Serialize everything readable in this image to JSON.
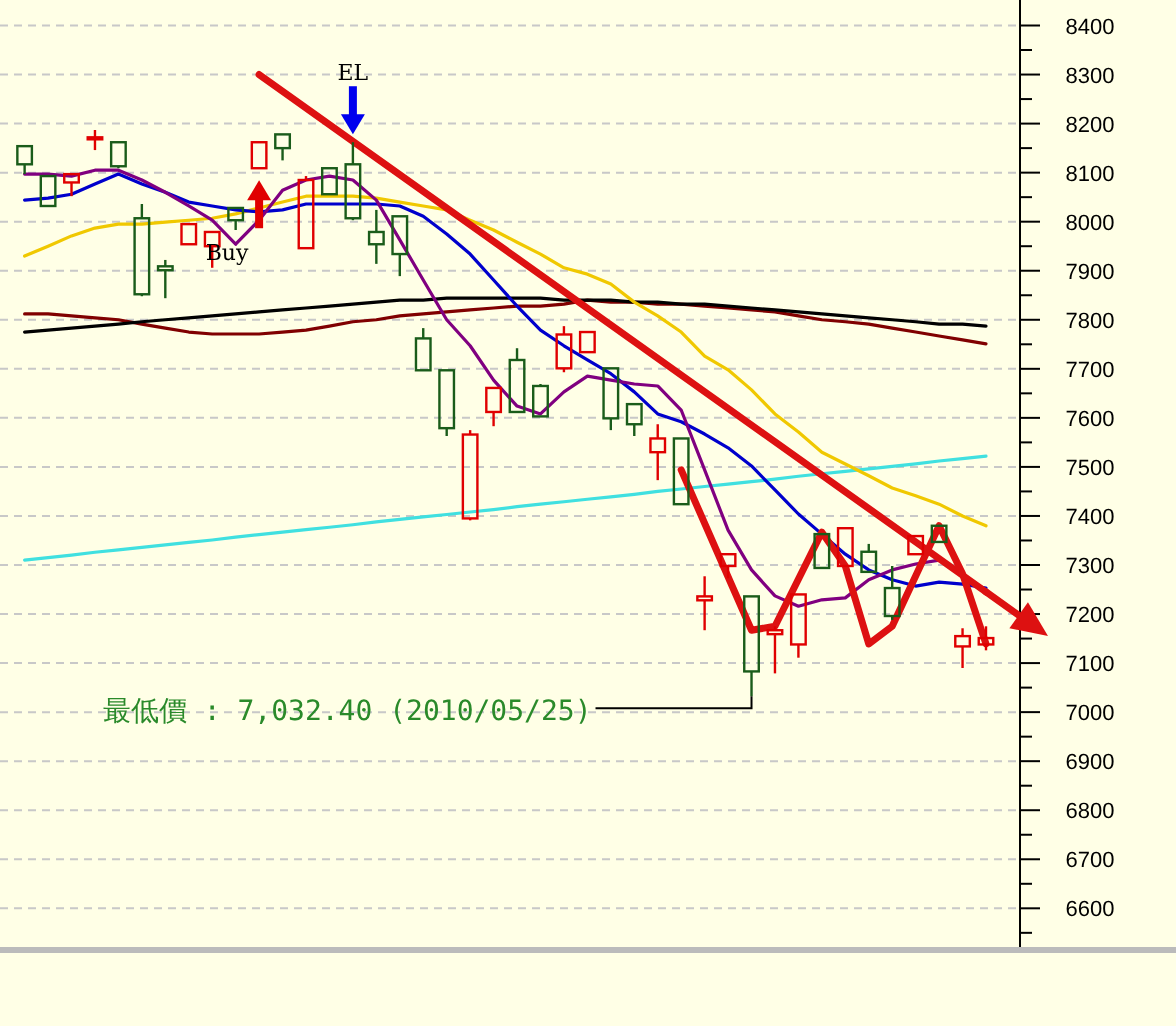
{
  "chart_data": {
    "type": "candlestick",
    "categories": [
      null,
      null,
      null,
      null,
      null,
      null,
      null,
      null,
      null,
      null,
      null,
      null,
      null,
      null,
      null,
      null,
      null,
      null,
      null,
      null,
      null,
      null,
      null,
      null,
      null,
      null,
      null,
      null,
      null,
      null,
      null,
      null,
      null,
      null,
      null,
      null,
      null,
      null,
      null,
      null,
      null,
      null
    ],
    "ylim": [
      6515,
      8452
    ],
    "yticks": [
      {
        "value": 6550,
        "label": null
      },
      6600,
      {
        "value": 6650,
        "label": null
      },
      6700,
      {
        "value": 6750,
        "label": null
      },
      6800,
      {
        "value": 6850,
        "label": null
      },
      6900,
      {
        "value": 6950,
        "label": null
      },
      7000,
      {
        "value": 7050,
        "label": null
      },
      7100,
      {
        "value": 7150,
        "label": null
      },
      7200,
      {
        "value": 7250,
        "label": null
      },
      7300,
      {
        "value": 7350,
        "label": null
      },
      7400,
      {
        "value": 7450,
        "label": null
      },
      7500,
      {
        "value": 7550,
        "label": null
      },
      7600,
      {
        "value": 7650,
        "label": null
      },
      7700,
      {
        "value": 7750,
        "label": null
      },
      7800,
      {
        "value": 7850,
        "label": null
      },
      7900,
      {
        "value": 7950,
        "label": null
      },
      8000,
      {
        "value": 8050,
        "label": null
      },
      8100,
      {
        "value": 8150,
        "label": null
      },
      8200,
      {
        "value": 8250,
        "label": null
      },
      8300,
      {
        "value": 8350,
        "label": null
      },
      8400
    ],
    "tick_labels": "y",
    "grid": "y",
    "ohlc": [
      [
        8154,
        8154,
        8097,
        8117
      ],
      [
        8093,
        8093,
        8032,
        8032
      ],
      [
        8080,
        8097,
        8052,
        8097
      ],
      [
        8168,
        8187,
        8146,
        8172
      ],
      [
        8162,
        8162,
        8109,
        8113
      ],
      [
        8007,
        8036,
        7848,
        7852
      ],
      [
        7909,
        7922,
        7844,
        7901
      ],
      [
        7954,
        7995,
        7954,
        7995
      ],
      [
        7950,
        7979,
        7906,
        7979
      ],
      [
        8028,
        8028,
        7983,
        8003
      ],
      [
        8109,
        8162,
        8109,
        8162
      ],
      [
        8178,
        8178,
        8125,
        8150
      ],
      [
        7946,
        8093,
        7946,
        8085
      ],
      [
        8109,
        8109,
        8056,
        8056
      ],
      [
        8117,
        8162,
        8003,
        8007
      ],
      [
        7979,
        8024,
        7914,
        7954
      ],
      [
        8011,
        8011,
        7889,
        7934
      ],
      [
        7762,
        7783,
        7697,
        7697
      ],
      [
        7697,
        7697,
        7563,
        7579
      ],
      [
        7395,
        7575,
        7391,
        7566
      ],
      [
        7612,
        7661,
        7583,
        7661
      ],
      [
        7718,
        7742,
        7612,
        7612
      ],
      [
        7665,
        7669,
        7603,
        7603
      ],
      [
        7701,
        7787,
        7693,
        7770
      ],
      [
        7734,
        7775,
        7734,
        7775
      ],
      [
        7701,
        7701,
        7575,
        7599
      ],
      [
        7628,
        7628,
        7563,
        7587
      ],
      [
        7530,
        7587,
        7473,
        7558
      ],
      [
        7558,
        7558,
        7424,
        7424
      ],
      [
        7228,
        7277,
        7167,
        7236
      ],
      [
        7298,
        7322,
        7273,
        7322
      ],
      [
        7236,
        7236,
        7032.4,
        7083
      ],
      [
        7159,
        7175,
        7079,
        7167
      ],
      [
        7138,
        7240,
        7111,
        7240
      ],
      [
        7363,
        7363,
        7294,
        7294
      ],
      [
        7298,
        7375,
        7298,
        7375
      ],
      [
        7327,
        7343,
        7286,
        7286
      ],
      [
        7253,
        7298,
        7188,
        7196
      ],
      [
        7322,
        7359,
        7322,
        7359
      ],
      [
        7380,
        7380,
        7347,
        7347
      ],
      [
        7134,
        7171,
        7090,
        7155
      ],
      [
        7138,
        7175,
        7126,
        7151
      ]
    ],
    "colors": [
      "#1a5c1a",
      "#1a5c1a",
      "#e00000",
      "#e00000",
      "#1a5c1a",
      "#1a5c1a",
      "#1a5c1a",
      "#e00000",
      "#e00000",
      "#1a5c1a",
      "#e00000",
      "#1a5c1a",
      "#e00000",
      "#1a5c1a",
      "#1a5c1a",
      "#1a5c1a",
      "#1a5c1a",
      "#1a5c1a",
      "#1a5c1a",
      "#e00000",
      "#e00000",
      "#1a5c1a",
      "#1a5c1a",
      "#e00000",
      "#e00000",
      "#1a5c1a",
      "#1a5c1a",
      "#e00000",
      "#1a5c1a",
      "#e00000",
      "#e00000",
      "#1a5c1a",
      "#e00000",
      "#e00000",
      "#1a5c1a",
      "#e00000",
      "#1a5c1a",
      "#1a5c1a",
      "#e00000",
      "#1a5c1a",
      "#e00000",
      "#e00000"
    ],
    "series": [
      {
        "type": "line",
        "color": "#40e0e0",
        "values": [
          7310,
          7315,
          7320,
          7326,
          7331,
          7336,
          7341,
          7346,
          7351,
          7357,
          7362,
          7367,
          7372,
          7377,
          7382,
          7388,
          7393,
          7398,
          7403,
          7408,
          7413,
          7419,
          7424,
          7429,
          7434,
          7439,
          7444,
          7450,
          7455,
          7460,
          7465,
          7470,
          7475,
          7481,
          7486,
          7491,
          7496,
          7501,
          7506,
          7512,
          7517,
          7522
        ]
      },
      {
        "type": "line",
        "color": "#800000",
        "values": [
          7812,
          7812,
          7808,
          7804,
          7800,
          7791,
          7783,
          7775,
          7771,
          7771,
          7771,
          7775,
          7779,
          7787,
          7796,
          7800,
          7808,
          7812,
          7816,
          7820,
          7824,
          7828,
          7828,
          7832,
          7840,
          7836,
          7836,
          7832,
          7832,
          7828,
          7824,
          7820,
          7816,
          7808,
          7800,
          7796,
          7791,
          7783,
          7775,
          7767,
          7759,
          7751
        ]
      },
      {
        "type": "line",
        "color": "#000000",
        "values": [
          7775,
          7779,
          7783,
          7787,
          7791,
          7796,
          7800,
          7804,
          7808,
          7812,
          7816,
          7820,
          7824,
          7828,
          7832,
          7836,
          7840,
          7840,
          7844,
          7844,
          7844,
          7844,
          7844,
          7840,
          7840,
          7840,
          7836,
          7836,
          7832,
          7832,
          7828,
          7824,
          7820,
          7816,
          7812,
          7808,
          7804,
          7800,
          7796,
          7791,
          7791,
          7787
        ]
      },
      {
        "type": "line",
        "color": "#f0c800",
        "values": [
          7930,
          7950,
          7971,
          7987,
          7995,
          7995,
          7999,
          8003,
          8007,
          8016,
          8028,
          8040,
          8052,
          8052,
          8052,
          8048,
          8040,
          8032,
          8024,
          8003,
          7983,
          7958,
          7934,
          7906,
          7893,
          7873,
          7836,
          7808,
          7775,
          7726,
          7698,
          7657,
          7608,
          7571,
          7530,
          7506,
          7482,
          7457,
          7441,
          7424,
          7400,
          7380
        ]
      },
      {
        "type": "line",
        "color": "#0000cc",
        "values": [
          8044,
          8048,
          8056,
          8077,
          8097,
          8077,
          8060,
          8040,
          8032,
          8024,
          8020,
          8024,
          8036,
          8036,
          8036,
          8036,
          8032,
          8011,
          7975,
          7934,
          7881,
          7828,
          7779,
          7747,
          7718,
          7690,
          7653,
          7608,
          7592,
          7567,
          7539,
          7502,
          7453,
          7404,
          7363,
          7322,
          7290,
          7270,
          7257,
          7265,
          7261,
          7253
        ]
      },
      {
        "type": "line",
        "color": "#800080",
        "values": [
          8097,
          8097,
          8093,
          8105,
          8105,
          8085,
          8060,
          8032,
          8003,
          7954,
          8003,
          8064,
          8085,
          8093,
          8085,
          8044,
          7963,
          7881,
          7800,
          7747,
          7677,
          7624,
          7608,
          7653,
          7685,
          7677,
          7669,
          7665,
          7616,
          7494,
          7371,
          7290,
          7237,
          7216,
          7229,
          7233,
          7270,
          7290,
          7302,
          7310,
          null,
          null
        ]
      },
      {
        "type": "line",
        "color": "#dd1111",
        "values": [
          null,
          null,
          null,
          null,
          null,
          null,
          null,
          null,
          null,
          null,
          8300,
          null,
          null,
          null,
          null,
          null,
          null,
          null,
          null,
          null,
          null,
          null,
          null,
          null,
          null,
          null,
          null,
          null,
          null,
          null,
          null,
          null,
          null,
          null,
          null,
          null,
          null,
          null,
          null,
          null,
          null,
          7245
        ]
      },
      {
        "type": "line",
        "color": "#dd1111",
        "values": [
          null,
          null,
          null,
          null,
          null,
          null,
          null,
          null,
          null,
          null,
          null,
          null,
          null,
          null,
          null,
          null,
          null,
          null,
          null,
          null,
          null,
          null,
          null,
          null,
          null,
          null,
          null,
          null,
          7494,
          null,
          null,
          7167,
          7175,
          null,
          7367,
          7298,
          7139,
          7175,
          null,
          7380,
          7282,
          7139
        ]
      }
    ],
    "annotations": [
      "最低價 : 7,032.40 (2010/05/25)",
      "Buy",
      "EL"
    ]
  }
}
